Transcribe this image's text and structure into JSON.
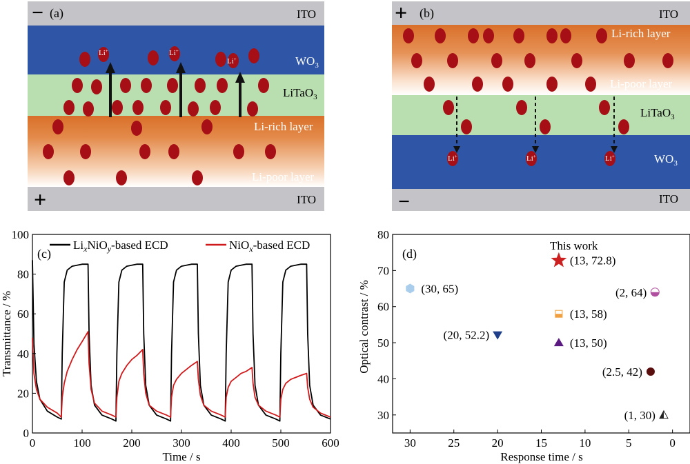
{
  "panel_a": {
    "label": "(a)",
    "top_sign": "−",
    "bottom_sign": "+",
    "top_electrode": "ITO",
    "bottom_electrode": "ITO",
    "layers": [
      "WO",
      "LiTaO",
      "Li-rich layer",
      "Li-poor layer"
    ],
    "ion_label": "Li",
    "colors": {
      "ito": "#c4c4c8",
      "wo3": "#2f56a6",
      "litao3": "#b9deb0",
      "orange": "#d9702a",
      "ion": "#a50f15"
    }
  },
  "panel_b": {
    "label": "(b)",
    "top_sign": "+",
    "bottom_sign": "−",
    "top_electrode": "ITO",
    "bottom_electrode": "ITO",
    "layers": [
      "Li-rich layer",
      "Li-poor layer",
      "LiTaO",
      "WO"
    ],
    "ion_label": "Li"
  },
  "chart_data": [
    {
      "panel": "(c)",
      "type": "line",
      "xlabel": "Time / s",
      "ylabel": "Transmittance / %",
      "xlim": [
        0,
        600
      ],
      "ylim": [
        0,
        100
      ],
      "xticks": [
        0,
        100,
        200,
        300,
        400,
        500,
        600
      ],
      "yticks": [
        0,
        20,
        40,
        60,
        80,
        100
      ],
      "legend_position": "top",
      "series": [
        {
          "name": "LixNiOy-based ECD",
          "legend_parts": [
            "Li",
            "x",
            "NiO",
            "y",
            "-based ECD"
          ],
          "color": "#000000",
          "x": [
            0,
            3,
            8,
            15,
            30,
            50,
            58,
            60,
            64,
            70,
            80,
            100,
            112,
            114,
            118,
            125,
            140,
            160,
            168,
            170,
            174,
            180,
            190,
            210,
            222,
            224,
            228,
            235,
            250,
            270,
            278,
            280,
            284,
            290,
            300,
            320,
            332,
            334,
            338,
            345,
            360,
            380,
            388,
            390,
            394,
            400,
            410,
            430,
            442,
            444,
            448,
            455,
            470,
            490,
            498,
            500,
            504,
            510,
            520,
            540,
            552,
            554,
            558,
            565,
            580,
            600
          ],
          "y": [
            87,
            45,
            26,
            17,
            11,
            8,
            7,
            40,
            76,
            82,
            84,
            85,
            85,
            50,
            24,
            14,
            9,
            7,
            6,
            40,
            76,
            82,
            84,
            85,
            85,
            50,
            24,
            14,
            9,
            7,
            6,
            40,
            76,
            82,
            84,
            85,
            85,
            50,
            24,
            14,
            9,
            7,
            6,
            40,
            76,
            82,
            84,
            85,
            85,
            50,
            24,
            14,
            9,
            7,
            6,
            40,
            76,
            82,
            84,
            85,
            85,
            50,
            24,
            14,
            9,
            7
          ]
        },
        {
          "name": "NiOx-based ECD",
          "legend_parts": [
            "NiO",
            "x",
            "-based ECD"
          ],
          "color": "#d0191b",
          "x": [
            0,
            3,
            8,
            15,
            30,
            50,
            58,
            60,
            64,
            70,
            80,
            90,
            100,
            112,
            114,
            118,
            125,
            140,
            160,
            168,
            170,
            174,
            180,
            190,
            200,
            210,
            222,
            224,
            228,
            235,
            250,
            270,
            278,
            280,
            284,
            290,
            300,
            310,
            320,
            332,
            334,
            338,
            345,
            360,
            380,
            388,
            390,
            394,
            400,
            410,
            420,
            430,
            442,
            444,
            448,
            455,
            470,
            490,
            498,
            500,
            504,
            510,
            520,
            530,
            540,
            552,
            554,
            558,
            565,
            580,
            600
          ],
          "y": [
            48,
            30,
            22,
            17,
            13,
            10,
            8,
            18,
            25,
            31,
            37,
            42,
            46,
            51,
            35,
            22,
            15,
            11,
            9,
            8,
            18,
            26,
            30,
            34,
            37,
            39,
            42,
            30,
            20,
            14,
            11,
            9,
            8,
            18,
            24,
            27,
            30,
            32,
            34,
            36,
            27,
            19,
            14,
            11,
            9,
            8,
            18,
            23,
            26,
            28,
            30,
            31,
            33,
            25,
            18,
            14,
            11,
            9,
            8,
            17,
            22,
            25,
            27,
            28,
            29,
            30,
            23,
            17,
            13,
            10,
            8
          ]
        }
      ]
    },
    {
      "panel": "(d)",
      "type": "scatter",
      "xlabel": "Response time / s",
      "ylabel": "Optical contrast / %",
      "xlim": [
        32,
        -2
      ],
      "ylim": [
        25,
        80
      ],
      "xticks": [
        30,
        25,
        20,
        15,
        10,
        5,
        0
      ],
      "yticks": [
        30,
        40,
        50,
        60,
        70,
        80
      ],
      "x_axis_reversed": true,
      "annotation": "This work",
      "points": [
        {
          "x": 13,
          "y": 72.8,
          "label": "(13, 72.8)",
          "marker": "star",
          "color": "#cc1f1f"
        },
        {
          "x": 30,
          "y": 65,
          "label": "(30, 65)",
          "marker": "hexagon",
          "color": "#a9cdea"
        },
        {
          "x": 2,
          "y": 64,
          "label": "(2, 64)",
          "marker": "half-circle",
          "color": "#b04fa0"
        },
        {
          "x": 13,
          "y": 58,
          "label": "(13, 58)",
          "marker": "half-square",
          "color": "#f0a040"
        },
        {
          "x": 20,
          "y": 52.2,
          "label": "(20, 52.2)",
          "marker": "triangle-down",
          "color": "#1f3f8a"
        },
        {
          "x": 13,
          "y": 50,
          "label": "(13, 50)",
          "marker": "triangle-up",
          "color": "#5b1a82"
        },
        {
          "x": 2.5,
          "y": 42,
          "label": "(2.5, 42)",
          "marker": "circle",
          "color": "#5a0d0d"
        },
        {
          "x": 1,
          "y": 30,
          "label": "(1, 30)",
          "marker": "half-triangle",
          "color": "#222222"
        }
      ]
    }
  ]
}
